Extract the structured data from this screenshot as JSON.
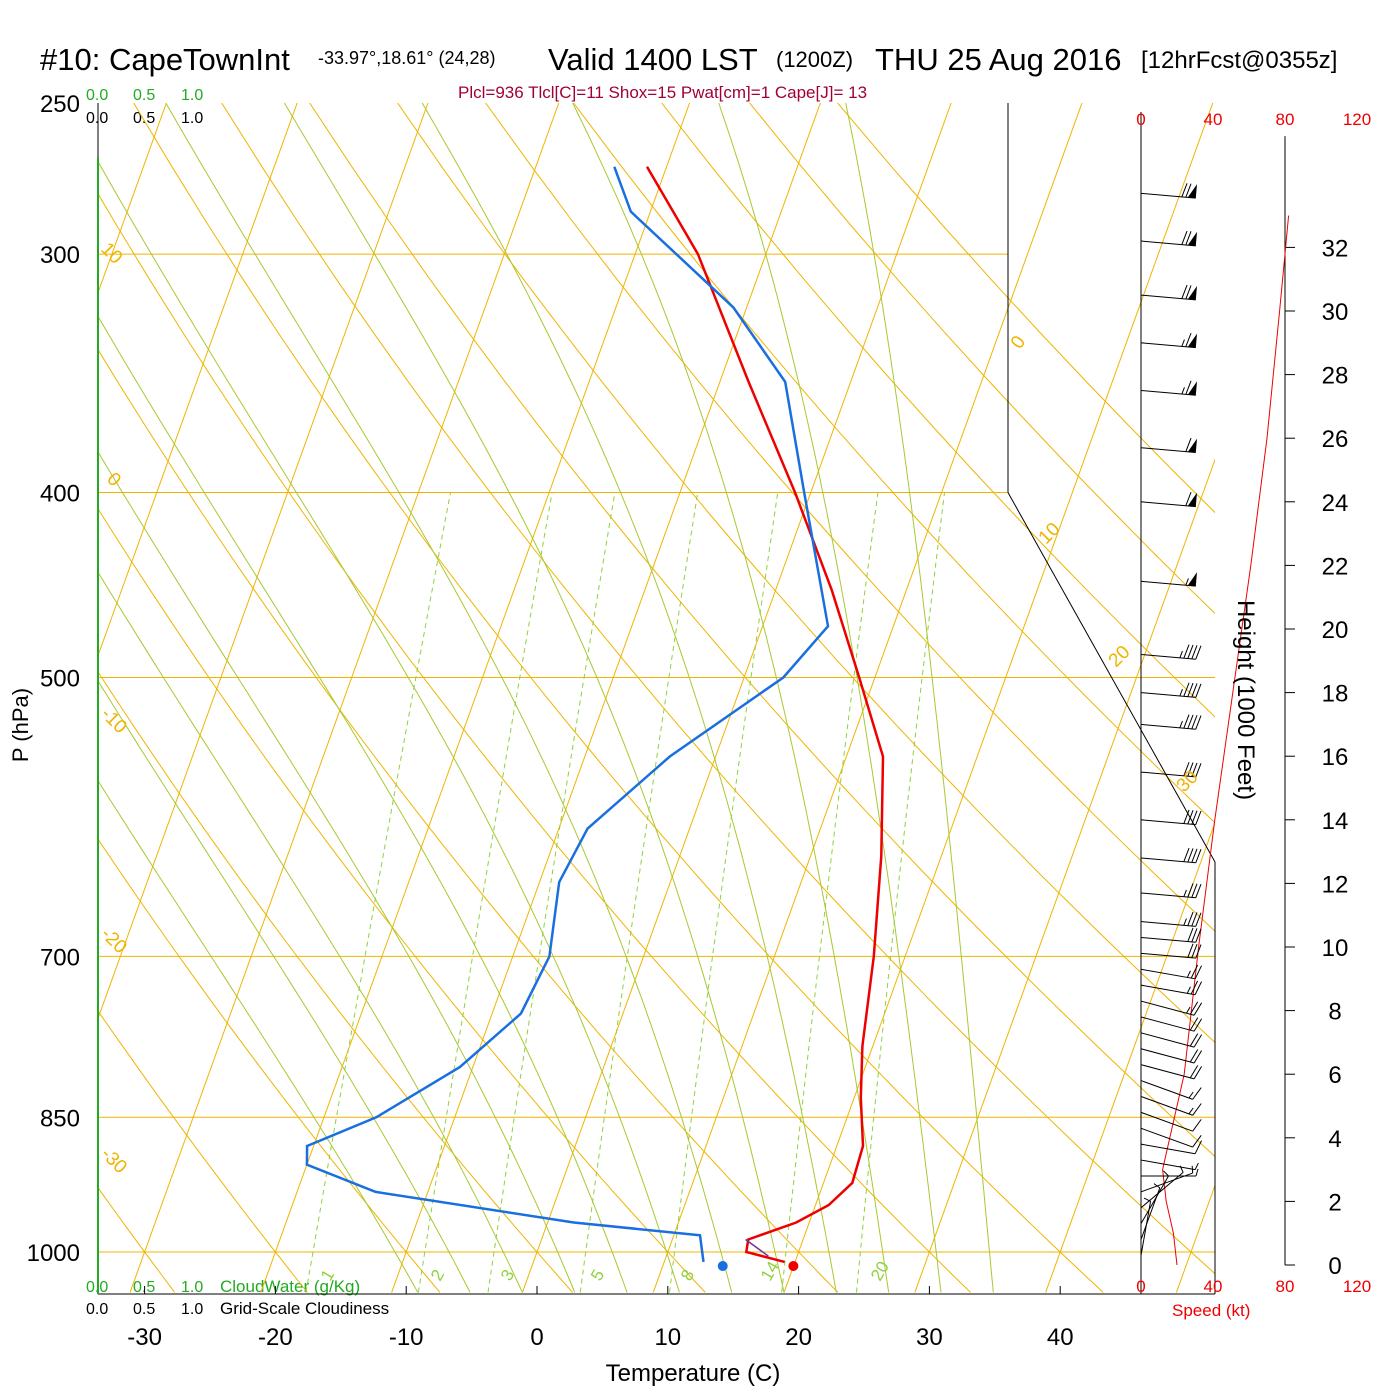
{
  "header": {
    "station": "#10: CapeTownInt",
    "coords": "-33.97°,18.61° (24,28)",
    "valid": "Valid 1400 LST",
    "zulu": "(1200Z)",
    "date": "THU 25 Aug 2016",
    "forecast": "[12hrFcst@0355z]",
    "params": "Plcl=936 Tlcl[C]=11 Shox=15 Pwat[cm]=1 Cape[J]= 13"
  },
  "labels": {
    "cloudwater": "CloudWater (g/Kg)",
    "cloudiness": "Grid-Scale Cloudiness",
    "ylabel": "P (hPa)",
    "xlabel": "Temperature (C)",
    "height_label": "Height (1000 Feet)",
    "speed_label": "Speed (kt)"
  },
  "scale_small": [
    "0.0",
    "0.5",
    "1.0"
  ],
  "colors": {
    "temperature": "#ee0000",
    "dewpoint": "#1a6fe0",
    "isobar": "#f0b400",
    "dry_adiabat": "#f0b400",
    "moist_adiabat": "#a8c832",
    "mixing_ratio": "#8fd13c",
    "cloud_scale": "#22aa22",
    "params": "#a0003a",
    "wind_speed": "#ee0000"
  },
  "chart_data": {
    "type": "line",
    "subtype": "skew-T log-P sounding",
    "xlim": [
      -30,
      45
    ],
    "ylim_hpa": [
      1050,
      250
    ],
    "pressure_ticks": [
      250,
      300,
      400,
      500,
      700,
      850,
      1000
    ],
    "temperature_ticks": [
      -30,
      -20,
      -10,
      0,
      10,
      20,
      30,
      40
    ],
    "height_ticks_kft": [
      0,
      2,
      4,
      6,
      8,
      10,
      12,
      14,
      16,
      18,
      20,
      22,
      24,
      26,
      28,
      30,
      32
    ],
    "speed_ticks_kt": [
      0,
      40,
      80,
      120
    ],
    "mixing_ratio_labels": [
      "1",
      "2",
      "3",
      "5",
      "8",
      "14",
      "20"
    ],
    "dry_adiabat_labels": [
      "10",
      "0",
      "-10",
      "-20",
      "-30",
      "0",
      "10",
      "20",
      "30"
    ],
    "series": [
      {
        "name": "Temperature",
        "points": [
          [
            1012,
            19.2
          ],
          [
            1000,
            16.0
          ],
          [
            985,
            15.8
          ],
          [
            965,
            19.0
          ],
          [
            945,
            21.0
          ],
          [
            920,
            22.2
          ],
          [
            880,
            22.0
          ],
          [
            830,
            20.5
          ],
          [
            780,
            19.2
          ],
          [
            700,
            17.6
          ],
          [
            620,
            15.4
          ],
          [
            550,
            12.8
          ],
          [
            500,
            8.8
          ],
          [
            450,
            4.3
          ],
          [
            400,
            -1.2
          ],
          [
            350,
            -7.8
          ],
          [
            300,
            -15.2
          ],
          [
            270,
            -21.5
          ]
        ]
      },
      {
        "name": "Dewpoint",
        "points": [
          [
            1012,
            13.0
          ],
          [
            980,
            12.0
          ],
          [
            965,
            2.0
          ],
          [
            930,
            -14.0
          ],
          [
            900,
            -20.0
          ],
          [
            880,
            -20.5
          ],
          [
            850,
            -16.0
          ],
          [
            800,
            -11.0
          ],
          [
            750,
            -7.8
          ],
          [
            700,
            -7.2
          ],
          [
            640,
            -8.5
          ],
          [
            600,
            -7.8
          ],
          [
            550,
            -3.5
          ],
          [
            500,
            3.0
          ],
          [
            470,
            5.0
          ],
          [
            400,
            -0.5
          ],
          [
            350,
            -5.0
          ],
          [
            320,
            -11.0
          ],
          [
            285,
            -21.5
          ],
          [
            270,
            -24.0
          ]
        ]
      }
    ],
    "surface_points": [
      {
        "name": "surface_temperature",
        "t": 19.6
      },
      {
        "name": "surface_dewpoint",
        "t": 14.2
      }
    ],
    "wind_speed_profile_kt": [
      [
        0,
        20
      ],
      [
        1,
        18
      ],
      [
        2,
        14
      ],
      [
        3,
        12
      ],
      [
        6,
        24
      ],
      [
        10,
        32
      ],
      [
        14,
        41
      ],
      [
        18,
        51
      ],
      [
        22,
        61
      ],
      [
        26,
        70
      ],
      [
        30,
        77
      ],
      [
        33,
        82
      ]
    ],
    "wind_barbs": [
      {
        "h": 0.3,
        "dir": 190,
        "spd": 5
      },
      {
        "h": 0.8,
        "dir": 200,
        "spd": 5
      },
      {
        "h": 1.3,
        "dir": 210,
        "spd": 5
      },
      {
        "h": 1.8,
        "dir": 230,
        "spd": 5
      },
      {
        "h": 2.3,
        "dir": 250,
        "spd": 5
      },
      {
        "h": 2.8,
        "dir": 270,
        "spd": 5
      },
      {
        "h": 3.3,
        "dir": 280,
        "spd": 5
      },
      {
        "h": 3.8,
        "dir": 280,
        "spd": 10
      },
      {
        "h": 4.3,
        "dir": 290,
        "spd": 10
      },
      {
        "h": 4.8,
        "dir": 290,
        "spd": 10
      },
      {
        "h": 5.3,
        "dir": 290,
        "spd": 15
      },
      {
        "h": 5.8,
        "dir": 290,
        "spd": 15
      },
      {
        "h": 6.3,
        "dir": 285,
        "spd": 20
      },
      {
        "h": 6.8,
        "dir": 285,
        "spd": 20
      },
      {
        "h": 7.3,
        "dir": 285,
        "spd": 20
      },
      {
        "h": 7.8,
        "dir": 285,
        "spd": 20
      },
      {
        "h": 8.3,
        "dir": 285,
        "spd": 25
      },
      {
        "h": 8.8,
        "dir": 280,
        "spd": 25
      },
      {
        "h": 9.3,
        "dir": 280,
        "spd": 25
      },
      {
        "h": 9.8,
        "dir": 275,
        "spd": 30
      },
      {
        "h": 10.3,
        "dir": 275,
        "spd": 30
      },
      {
        "h": 10.8,
        "dir": 275,
        "spd": 35
      },
      {
        "h": 11.7,
        "dir": 275,
        "spd": 35
      },
      {
        "h": 12.8,
        "dir": 275,
        "spd": 40
      },
      {
        "h": 14.0,
        "dir": 275,
        "spd": 40
      },
      {
        "h": 15.5,
        "dir": 275,
        "spd": 40
      },
      {
        "h": 17.0,
        "dir": 275,
        "spd": 45
      },
      {
        "h": 18.0,
        "dir": 275,
        "spd": 45
      },
      {
        "h": 19.2,
        "dir": 275,
        "spd": 45
      },
      {
        "h": 21.5,
        "dir": 275,
        "spd": 55
      },
      {
        "h": 24.0,
        "dir": 275,
        "spd": 60
      },
      {
        "h": 25.7,
        "dir": 275,
        "spd": 60
      },
      {
        "h": 27.5,
        "dir": 275,
        "spd": 65
      },
      {
        "h": 29.0,
        "dir": 275,
        "spd": 65
      },
      {
        "h": 30.5,
        "dir": 275,
        "spd": 70
      },
      {
        "h": 32.2,
        "dir": 275,
        "spd": 70
      },
      {
        "h": 33.7,
        "dir": 275,
        "spd": 70
      }
    ]
  }
}
